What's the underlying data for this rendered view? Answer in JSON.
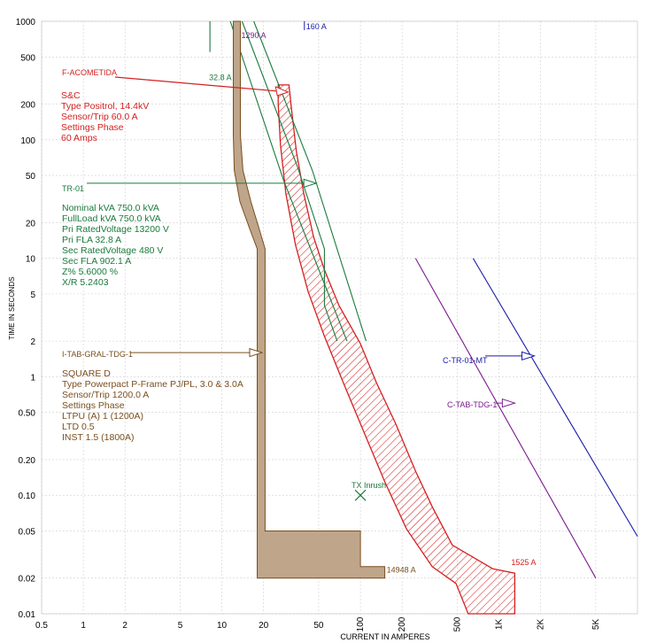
{
  "chart_data": {
    "type": "line",
    "xlabel": "CURRENT IN AMPERES",
    "ylabel": "TIME IN SECONDS",
    "xscale": "log",
    "yscale": "log",
    "xlim": [
      0.5,
      10000
    ],
    "ylim": [
      0.01,
      1000
    ],
    "x_ticks": [
      {
        "v": 0.5,
        "t": "0.5"
      },
      {
        "v": 1,
        "t": "1"
      },
      {
        "v": 2,
        "t": "2"
      },
      {
        "v": 5,
        "t": "5"
      },
      {
        "v": 10,
        "t": "10"
      },
      {
        "v": 20,
        "t": "20"
      },
      {
        "v": 50,
        "t": "50"
      },
      {
        "v": 100,
        "t": "100"
      },
      {
        "v": 200,
        "t": "200"
      },
      {
        "v": 500,
        "t": "500"
      },
      {
        "v": 1000,
        "t": "1K"
      },
      {
        "v": 2000,
        "t": "2K"
      },
      {
        "v": 5000,
        "t": "5K"
      }
    ],
    "y_ticks": [
      {
        "v": 1000,
        "t": "1000"
      },
      {
        "v": 500,
        "t": "500"
      },
      {
        "v": 200,
        "t": "200"
      },
      {
        "v": 100,
        "t": "100"
      },
      {
        "v": 50,
        "t": "50"
      },
      {
        "v": 20,
        "t": "20"
      },
      {
        "v": 10,
        "t": "10"
      },
      {
        "v": 5,
        "t": "5"
      },
      {
        "v": 2,
        "t": "2"
      },
      {
        "v": 1,
        "t": "1"
      },
      {
        "v": 0.5,
        "t": "0.50"
      },
      {
        "v": 0.2,
        "t": "0.20"
      },
      {
        "v": 0.1,
        "t": "0.10"
      },
      {
        "v": 0.05,
        "t": "0.05"
      },
      {
        "v": 0.02,
        "t": "0.02"
      },
      {
        "v": 0.01,
        "t": "0.01"
      }
    ],
    "grid": true,
    "colors": {
      "fuse": "#d42020",
      "transformer": "#1a7a3c",
      "breaker": "#7a4f1e",
      "breaker_fill": "#bfa58a",
      "c_tab": "#7a1a8c",
      "c_tr": "#1a1aa8"
    },
    "series": [
      {
        "name": "F-ACOMETIDA",
        "kind": "fuse-band",
        "color": "#d42020",
        "outline": [
          [
            25.5,
            290
          ],
          [
            30.5,
            290
          ],
          [
            31.5,
            200
          ],
          [
            34.5,
            80
          ],
          [
            39,
            35
          ],
          [
            46,
            15
          ],
          [
            55,
            8
          ],
          [
            70,
            4
          ],
          [
            100,
            1.9
          ],
          [
            130,
            0.9
          ],
          [
            180,
            0.4
          ],
          [
            250,
            0.16
          ],
          [
            330,
            0.08
          ],
          [
            460,
            0.038
          ],
          [
            900,
            0.024
          ],
          [
            1300,
            0.022
          ],
          [
            1300,
            0.01
          ],
          [
            600,
            0.01
          ],
          [
            490,
            0.018
          ],
          [
            330,
            0.025
          ],
          [
            215,
            0.052
          ],
          [
            150,
            0.13
          ],
          [
            105,
            0.35
          ],
          [
            75,
            0.9
          ],
          [
            55,
            2.2
          ],
          [
            42,
            5.2
          ],
          [
            34,
            13
          ],
          [
            29,
            35
          ],
          [
            26.5,
            90
          ],
          [
            25.5,
            200
          ]
        ]
      },
      {
        "name": "TR-01",
        "kind": "damage-curves",
        "color": "#1a7a3c",
        "lines": [
          [
            [
              8.2,
              1000
            ],
            [
              8.2,
              550
            ]
          ],
          [
            [
              11.5,
              1000
            ],
            [
              28,
              45
            ],
            [
              80,
              2
            ]
          ],
          [
            [
              14,
              1000
            ],
            [
              35,
              60
            ],
            [
              55,
              12
            ],
            [
              55,
              4
            ],
            [
              68,
              2
            ]
          ],
          [
            [
              17,
              1000
            ],
            [
              45,
              55
            ],
            [
              110,
              2
            ]
          ]
        ]
      },
      {
        "name": "I-TAB-GRAL-TDG-1",
        "kind": "breaker-band",
        "color": "#7a4f1e",
        "fill": "#bfa58a",
        "outline": [
          [
            12.1,
            1000
          ],
          [
            13.6,
            1000
          ],
          [
            13.6,
            110
          ],
          [
            14.2,
            55
          ],
          [
            16.2,
            30
          ],
          [
            18.5,
            18
          ],
          [
            20.5,
            12
          ],
          [
            20.5,
            0.05
          ],
          [
            100,
            0.05
          ],
          [
            100,
            0.025
          ],
          [
            150,
            0.025
          ],
          [
            150,
            0.02
          ],
          [
            18,
            0.02
          ],
          [
            18,
            12
          ],
          [
            15.8,
            18
          ],
          [
            13.5,
            30
          ],
          [
            12.3,
            55
          ],
          [
            12.1,
            110
          ]
        ]
      },
      {
        "name": "C-TAB-TDG-1",
        "kind": "curve",
        "color": "#7a1a8c",
        "points": [
          [
            250,
            10
          ],
          [
            5000,
            0.02
          ]
        ]
      },
      {
        "name": "C-TR-01-MT",
        "kind": "curve",
        "color": "#1a1aa8",
        "points": [
          [
            650,
            10
          ],
          [
            10000,
            0.045
          ]
        ]
      }
    ],
    "annotations": {
      "tx_inrush": {
        "label": "TX Inrush",
        "x": 100,
        "y": 0.1
      },
      "point_1290": {
        "label": "1290 A",
        "x": 13.6,
        "y": 1000,
        "color": "#7a1a8c"
      },
      "point_32_8": {
        "label": "32.8 A",
        "x": 8.2,
        "y": 550,
        "color": "#1a7a3c"
      },
      "point_160": {
        "label": "160 A",
        "x": 40,
        "y": 1000,
        "color": "#1a1aa8"
      },
      "point_14948": {
        "label": "14948 A",
        "x": 150,
        "y": 0.02,
        "color": "#7a4f1e"
      },
      "point_1525": {
        "label": "1525 A",
        "x": 1300,
        "y": 0.022,
        "color": "#d42020"
      }
    },
    "labels": {
      "fuse": {
        "tag": "F-ACOMETIDA",
        "lines": [
          "S&C",
          "Type Positrol, 14.4kV",
          "Sensor/Trip 60.0 A",
          "Settings Phase",
          "  60 Amps"
        ],
        "arrow_to": [
          30,
          290
        ]
      },
      "transformer": {
        "tag": "TR-01",
        "lines": [
          "Nominal kVA 750.0 kVA",
          "FullLoad kVA 750.0 kVA",
          "Pri RatedVoltage 13200 V",
          "Pri FLA 32.8 A",
          "Sec RatedVoltage 480 V",
          "Sec FLA 902.1 A",
          "Z% 5.6000 %",
          "X/R 5.2403"
        ],
        "arrow_to": [
          48,
          43
        ]
      },
      "breaker": {
        "tag": "I-TAB-GRAL-TDG-1",
        "lines": [
          "SQUARE D",
          "Type Powerpact P-Frame PJ/PL, 3.0 & 3.0A",
          "Sensor/Trip 1200.0 A",
          "Settings Phase",
          "  LTPU (A) 1 (1200A)",
          "  LTD 0.5",
          "  INST 1.5 (1800A)"
        ],
        "arrow_to": [
          19.5,
          1.6
        ]
      },
      "c_tab": {
        "tag": "C-TAB-TDG-1",
        "arrow_to": [
          1300,
          0.6
        ]
      },
      "c_tr": {
        "tag": "C-TR-01-MT",
        "arrow_to": [
          1800,
          1.5
        ]
      }
    }
  }
}
